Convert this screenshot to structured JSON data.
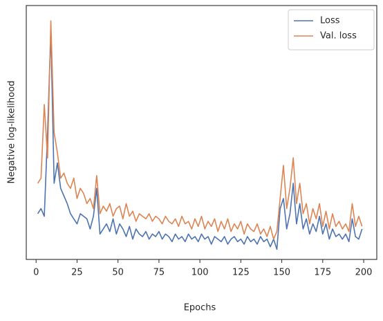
{
  "chart_data": {
    "type": "line",
    "x_label": "Epochs",
    "y_label": "Negative log-likelihood",
    "x": [
      1,
      3,
      5,
      7,
      9,
      11,
      13,
      15,
      17,
      19,
      21,
      23,
      25,
      27,
      29,
      31,
      33,
      35,
      37,
      39,
      41,
      43,
      45,
      47,
      49,
      51,
      53,
      55,
      57,
      59,
      61,
      63,
      65,
      67,
      69,
      71,
      73,
      75,
      77,
      79,
      81,
      83,
      85,
      87,
      89,
      91,
      93,
      95,
      97,
      99,
      101,
      103,
      105,
      107,
      109,
      111,
      113,
      115,
      117,
      119,
      121,
      123,
      125,
      127,
      129,
      131,
      133,
      135,
      137,
      139,
      141,
      143,
      145,
      147,
      149,
      151,
      153,
      155,
      157,
      159,
      161,
      163,
      165,
      167,
      169,
      171,
      173,
      175,
      177,
      179,
      181,
      183,
      185,
      187,
      189,
      191,
      193,
      195,
      197,
      199
    ],
    "series": [
      {
        "name": "Loss",
        "color": "#4c72b0",
        "values": [
          18,
          20,
          17,
          50,
          90,
          30,
          38,
          28,
          25,
          22,
          18,
          16,
          14,
          18,
          17,
          16,
          12,
          17,
          28,
          10,
          12,
          14,
          11,
          16,
          10,
          14,
          12,
          9,
          13,
          8,
          12,
          10,
          9,
          11,
          8,
          10,
          9,
          11,
          8,
          10,
          9,
          7,
          10,
          8,
          9,
          7,
          10,
          8,
          9,
          7,
          10,
          8,
          9,
          6,
          9,
          8,
          7,
          9,
          6,
          8,
          9,
          7,
          8,
          6,
          9,
          7,
          8,
          6,
          9,
          7,
          8,
          5,
          8,
          4,
          20,
          24,
          12,
          18,
          30,
          14,
          22,
          12,
          16,
          10,
          14,
          11,
          17,
          10,
          14,
          8,
          12,
          9,
          10,
          8,
          10,
          7,
          16,
          9,
          8,
          12
        ]
      },
      {
        "name": "Val. loss",
        "color": "#dd8452",
        "values": [
          30,
          32,
          61,
          40,
          94,
          50,
          42,
          32,
          34,
          30,
          28,
          32,
          24,
          28,
          26,
          22,
          24,
          20,
          33,
          18,
          21,
          19,
          22,
          17,
          20,
          21,
          16,
          22,
          17,
          19,
          15,
          18,
          17,
          16,
          18,
          15,
          17,
          16,
          14,
          17,
          15,
          14,
          16,
          13,
          17,
          14,
          15,
          12,
          16,
          13,
          17,
          12,
          15,
          13,
          16,
          11,
          15,
          12,
          16,
          11,
          14,
          12,
          15,
          10,
          14,
          12,
          11,
          14,
          10,
          12,
          9,
          13,
          8,
          11,
          24,
          37,
          20,
          28,
          40,
          22,
          30,
          18,
          22,
          14,
          20,
          16,
          22,
          13,
          19,
          12,
          18,
          13,
          15,
          12,
          14,
          11,
          22,
          13,
          17,
          13
        ]
      }
    ],
    "xlim": [
      -6,
      208
    ],
    "ylim": [
      0,
      100
    ],
    "xticks": [
      0,
      25,
      50,
      75,
      100,
      125,
      150,
      175,
      200
    ],
    "grid": false,
    "legend": "upper right"
  }
}
